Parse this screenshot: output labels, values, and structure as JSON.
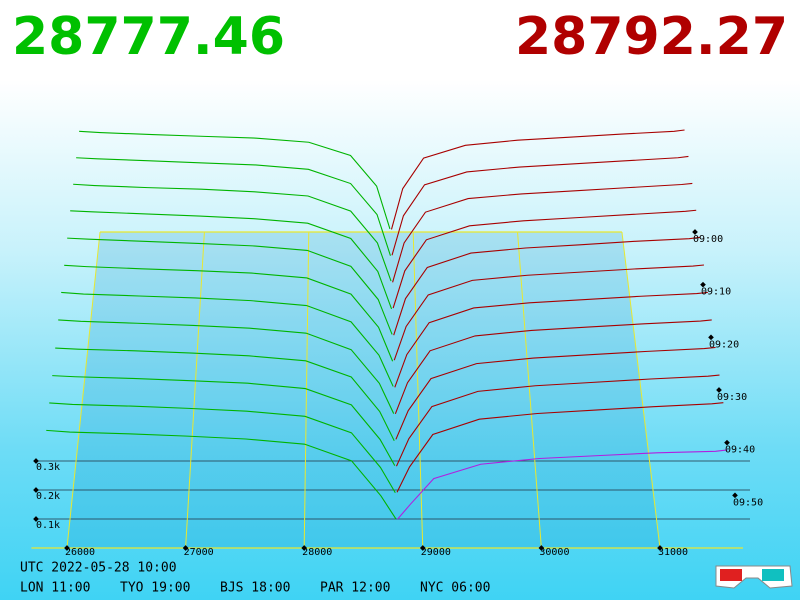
{
  "chart_data": {
    "type": "depth3d",
    "bid_color": "#00b400",
    "ask_color": "#a80000",
    "front_ask_color": "#b020e0",
    "floor_color": "#e8e830",
    "bid_prices": [
      25800,
      26000,
      26500,
      27000,
      27500,
      28000,
      28400,
      28650,
      28777.46
    ],
    "ask_prices": [
      28792.27,
      28900,
      29100,
      29500,
      30000,
      30500,
      31000,
      31500,
      31600
    ],
    "t": [
      0,
      5,
      10,
      15,
      20,
      25,
      30,
      35,
      40,
      45,
      50,
      55
    ],
    "snapshots": [
      {
        "bids": [
          395,
          390,
          382,
          375,
          368,
          352,
          300,
          180,
          12
        ],
        "asks": [
          10,
          170,
          290,
          340,
          360,
          372,
          384,
          395,
          400
        ]
      },
      {
        "bids": [
          390,
          386,
          378,
          370,
          362,
          345,
          290,
          170,
          10
        ],
        "asks": [
          12,
          165,
          285,
          335,
          354,
          366,
          378,
          390,
          395
        ]
      },
      {
        "bids": [
          385,
          380,
          372,
          366,
          356,
          340,
          282,
          160,
          14
        ],
        "asks": [
          9,
          160,
          278,
          330,
          348,
          360,
          372,
          384,
          388
        ]
      },
      {
        "bids": [
          380,
          376,
          368,
          360,
          350,
          333,
          275,
          150,
          8
        ],
        "asks": [
          11,
          152,
          270,
          323,
          342,
          354,
          366,
          378,
          382
        ]
      },
      {
        "bids": [
          372,
          368,
          360,
          352,
          343,
          326,
          266,
          142,
          11
        ],
        "asks": [
          8,
          145,
          262,
          316,
          335,
          347,
          360,
          370,
          375
        ]
      },
      {
        "bids": [
          365,
          360,
          352,
          345,
          336,
          318,
          258,
          135,
          9
        ],
        "asks": [
          13,
          138,
          255,
          309,
          328,
          340,
          352,
          362,
          366
        ]
      },
      {
        "bids": [
          358,
          352,
          345,
          338,
          328,
          310,
          250,
          128,
          13
        ],
        "asks": [
          10,
          130,
          247,
          301,
          320,
          332,
          344,
          354,
          358
        ]
      },
      {
        "bids": [
          350,
          345,
          338,
          330,
          320,
          302,
          242,
          120,
          10
        ],
        "asks": [
          9,
          122,
          238,
          292,
          312,
          324,
          336,
          346,
          350
        ]
      },
      {
        "bids": [
          340,
          336,
          330,
          322,
          312,
          294,
          236,
          112,
          7
        ],
        "asks": [
          12,
          115,
          230,
          284,
          304,
          316,
          328,
          338,
          342
        ]
      },
      {
        "bids": [
          332,
          328,
          322,
          314,
          305,
          286,
          228,
          105,
          12
        ],
        "asks": [
          10,
          108,
          222,
          276,
          296,
          308,
          320,
          330,
          334
        ]
      },
      {
        "bids": [
          325,
          320,
          314,
          306,
          296,
          278,
          220,
          98,
          9
        ],
        "asks": [
          11,
          100,
          214,
          268,
          288,
          300,
          312,
          322,
          326
        ]
      },
      {
        "bids": [
          318,
          312,
          306,
          298,
          288,
          270,
          212,
          90,
          10
        ],
        "asks": [
          9,
          60,
          150,
          200,
          220,
          230,
          240,
          245,
          250
        ]
      }
    ],
    "xlim": [
      25700,
      31700
    ],
    "xticks": [
      26000,
      27000,
      28000,
      29000,
      30000,
      31000
    ],
    "zlim": [
      0,
      60
    ],
    "zticks": [
      {
        "value": 0,
        "label": "09:00"
      },
      {
        "value": 10,
        "label": "09:10"
      },
      {
        "value": 20,
        "label": "09:20"
      },
      {
        "value": 30,
        "label": "09:30"
      },
      {
        "value": 40,
        "label": "09:40"
      },
      {
        "value": 50,
        "label": "09:50"
      }
    ],
    "ylim": [
      0,
      400
    ],
    "yticks": [
      {
        "value": 100,
        "label": "0.1k"
      },
      {
        "value": 200,
        "label": "0.2k"
      },
      {
        "value": 300,
        "label": "0.3k"
      }
    ]
  },
  "footer": {
    "utc": "UTC 2022-05-28 10:00",
    "cities": [
      "LON 11:00",
      "TYO 19:00",
      "BJS 18:00",
      "PAR 12:00",
      "NYC 06:00"
    ]
  }
}
